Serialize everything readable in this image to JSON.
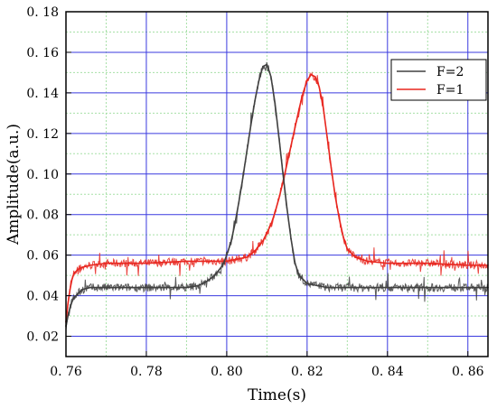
{
  "chart_data": {
    "type": "line",
    "xlabel": "Time(s)",
    "ylabel": "Amplitude(a.u.)",
    "xlim": [
      0.76,
      0.865
    ],
    "ylim": [
      0.01,
      0.18
    ],
    "x_ticks": [
      0.76,
      0.78,
      0.8,
      0.82,
      0.84,
      0.86
    ],
    "x_tick_labels": [
      "0. 76",
      "0. 78",
      "0. 80",
      "0. 82",
      "0. 84",
      "0. 86"
    ],
    "y_ticks": [
      0.02,
      0.04,
      0.06,
      0.08,
      0.1,
      0.12,
      0.14,
      0.16,
      0.18
    ],
    "y_tick_labels": [
      "0. 02",
      "0. 04",
      "0. 06",
      "0. 08",
      "0. 10",
      "0. 12",
      "0. 14",
      "0. 16",
      "0. 18"
    ],
    "grid": true,
    "legend_position": "top-right",
    "series": [
      {
        "name": "F=2",
        "color": "#404040",
        "x": [
          0.76,
          0.7605,
          0.761,
          0.7615,
          0.762,
          0.763,
          0.764,
          0.766,
          0.77,
          0.78,
          0.79,
          0.793,
          0.795,
          0.797,
          0.799,
          0.8,
          0.801,
          0.802,
          0.803,
          0.804,
          0.805,
          0.806,
          0.807,
          0.808,
          0.809,
          0.81,
          0.811,
          0.812,
          0.813,
          0.814,
          0.815,
          0.816,
          0.817,
          0.818,
          0.82,
          0.825,
          0.83,
          0.84,
          0.85,
          0.86,
          0.865
        ],
        "values": [
          0.025,
          0.03,
          0.034,
          0.037,
          0.039,
          0.041,
          0.043,
          0.044,
          0.044,
          0.044,
          0.044,
          0.045,
          0.047,
          0.05,
          0.055,
          0.06,
          0.066,
          0.075,
          0.086,
          0.098,
          0.111,
          0.124,
          0.136,
          0.146,
          0.153,
          0.154,
          0.148,
          0.135,
          0.118,
          0.1,
          0.083,
          0.068,
          0.056,
          0.05,
          0.046,
          0.044,
          0.044,
          0.044,
          0.044,
          0.044,
          0.044
        ]
      },
      {
        "name": "F=1",
        "color": "#e8261f",
        "x": [
          0.76,
          0.7605,
          0.761,
          0.7615,
          0.762,
          0.763,
          0.764,
          0.766,
          0.77,
          0.78,
          0.79,
          0.8,
          0.805,
          0.807,
          0.809,
          0.811,
          0.812,
          0.813,
          0.814,
          0.815,
          0.816,
          0.817,
          0.818,
          0.819,
          0.82,
          0.821,
          0.822,
          0.823,
          0.824,
          0.825,
          0.826,
          0.827,
          0.828,
          0.829,
          0.83,
          0.832,
          0.835,
          0.84,
          0.85,
          0.86,
          0.865
        ],
        "values": [
          0.027,
          0.036,
          0.043,
          0.048,
          0.051,
          0.053,
          0.054,
          0.055,
          0.056,
          0.056,
          0.057,
          0.057,
          0.059,
          0.062,
          0.067,
          0.075,
          0.081,
          0.088,
          0.096,
          0.105,
          0.114,
          0.123,
          0.132,
          0.14,
          0.146,
          0.149,
          0.148,
          0.143,
          0.133,
          0.118,
          0.103,
          0.089,
          0.078,
          0.069,
          0.063,
          0.059,
          0.057,
          0.056,
          0.056,
          0.055,
          0.055
        ]
      }
    ]
  }
}
